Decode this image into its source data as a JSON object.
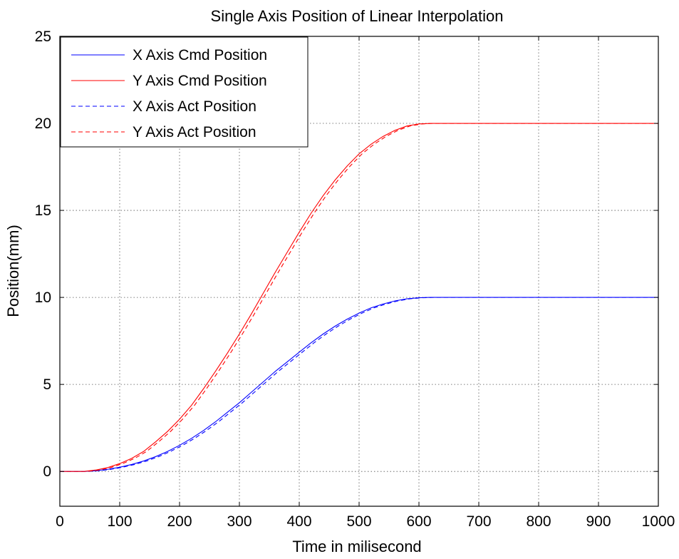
{
  "chart_data": {
    "type": "line",
    "title": "Single Axis Position of Linear Interpolation",
    "xlabel": "Time in milisecond",
    "ylabel": "Position(mm)",
    "xlim": [
      0,
      1000
    ],
    "ylim": [
      -2,
      25
    ],
    "xticks": [
      0,
      100,
      200,
      300,
      400,
      500,
      600,
      700,
      800,
      900,
      1000
    ],
    "yticks": [
      0,
      5,
      10,
      15,
      20,
      25
    ],
    "grid": true,
    "legend_position": "top-left",
    "series": [
      {
        "name": "X Axis Cmd Position",
        "color": "#0000ff",
        "style": "solid",
        "x": [
          0,
          40,
          60,
          80,
          100,
          120,
          140,
          160,
          180,
          200,
          220,
          240,
          260,
          280,
          300,
          320,
          340,
          360,
          380,
          400,
          420,
          440,
          460,
          480,
          500,
          520,
          540,
          560,
          580,
          600,
          620,
          1000
        ],
        "y": [
          0,
          0,
          0.04,
          0.12,
          0.24,
          0.4,
          0.6,
          0.85,
          1.15,
          1.5,
          1.9,
          2.35,
          2.85,
          3.4,
          3.95,
          4.55,
          5.15,
          5.75,
          6.3,
          6.85,
          7.4,
          7.9,
          8.35,
          8.75,
          9.1,
          9.4,
          9.62,
          9.8,
          9.92,
          9.98,
          10,
          10
        ]
      },
      {
        "name": "Y Axis Cmd Position",
        "color": "#ff0000",
        "style": "solid",
        "x": [
          0,
          40,
          60,
          80,
          100,
          120,
          140,
          160,
          180,
          200,
          220,
          240,
          260,
          280,
          300,
          320,
          340,
          360,
          380,
          400,
          420,
          440,
          460,
          480,
          500,
          520,
          540,
          560,
          580,
          600,
          620,
          1000
        ],
        "y": [
          0,
          0,
          0.08,
          0.22,
          0.45,
          0.75,
          1.15,
          1.7,
          2.3,
          3.0,
          3.8,
          4.75,
          5.75,
          6.8,
          7.9,
          9.05,
          10.25,
          11.45,
          12.6,
          13.75,
          14.85,
          15.85,
          16.75,
          17.55,
          18.25,
          18.8,
          19.25,
          19.6,
          19.85,
          19.97,
          20,
          20
        ]
      },
      {
        "name": "X Axis Act Position",
        "color": "#0000ff",
        "style": "dashed",
        "x": [
          0,
          45,
          65,
          85,
          105,
          125,
          145,
          165,
          185,
          205,
          225,
          245,
          265,
          285,
          305,
          325,
          345,
          365,
          385,
          405,
          425,
          445,
          465,
          485,
          505,
          525,
          545,
          565,
          585,
          605,
          625,
          1000
        ],
        "y": [
          0,
          0,
          0.04,
          0.12,
          0.24,
          0.4,
          0.6,
          0.85,
          1.15,
          1.5,
          1.9,
          2.35,
          2.85,
          3.4,
          3.95,
          4.55,
          5.15,
          5.75,
          6.3,
          6.85,
          7.4,
          7.9,
          8.35,
          8.75,
          9.1,
          9.4,
          9.62,
          9.8,
          9.92,
          9.98,
          10,
          10
        ]
      },
      {
        "name": "Y Axis Act Position",
        "color": "#ff0000",
        "style": "dashed",
        "x": [
          0,
          45,
          65,
          85,
          105,
          125,
          145,
          165,
          185,
          205,
          225,
          245,
          265,
          285,
          305,
          325,
          345,
          365,
          385,
          405,
          425,
          445,
          465,
          485,
          505,
          525,
          545,
          565,
          585,
          605,
          625,
          1000
        ],
        "y": [
          0,
          0,
          0.08,
          0.22,
          0.45,
          0.75,
          1.15,
          1.7,
          2.3,
          3.0,
          3.8,
          4.75,
          5.75,
          6.8,
          7.9,
          9.05,
          10.25,
          11.45,
          12.6,
          13.75,
          14.85,
          15.85,
          16.75,
          17.55,
          18.25,
          18.8,
          19.25,
          19.6,
          19.85,
          19.97,
          20,
          20
        ]
      }
    ]
  }
}
